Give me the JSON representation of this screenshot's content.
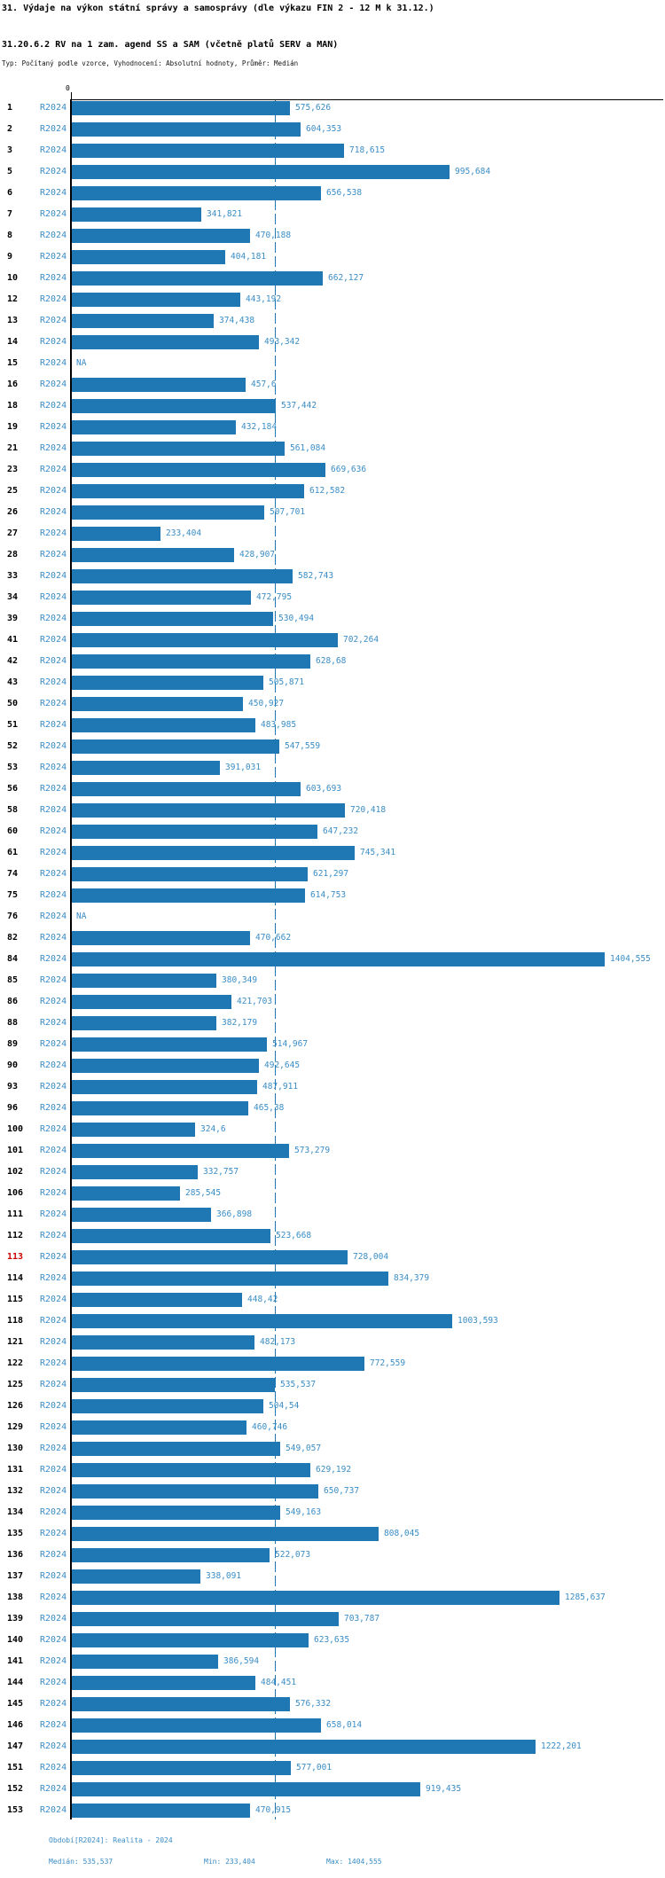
{
  "colors": {
    "bar": "#1f77b4",
    "text_blue": "#3a8dc6",
    "highlight": "#cc0000",
    "axis": "#000000"
  },
  "chart_data": {
    "type": "bar",
    "orientation": "horizontal",
    "title": "31. Výdaje na výkon státní správy a samosprávy (dle výkazu FIN 2 - 12 M k 31.12.)",
    "subtitle": "31.20.6.2 RV na 1 zam. agend SS a SAM (včetně platů SERV a MAN)",
    "meta": "Typ: Počítaný podle vzorce, Vyhodnocení: Absolutní hodnoty, Průměr: Medián",
    "series_label": "R2024",
    "axis_zero_label": "0",
    "na_label": "NA",
    "median_value": 535.537,
    "median_line": true,
    "highlighted_category": "113",
    "xlim_approx": [
      0,
      1560
    ],
    "grid": false,
    "footer": {
      "period": "Období[R2024]: Realita - 2024",
      "median": "Medián: 535,537",
      "min": "Min: 233,404",
      "max": "Max: 1404,555"
    },
    "stats": {
      "median": 535.537,
      "min": 233.404,
      "max": 1404.555
    },
    "rows": [
      {
        "label": "1",
        "value": 575.626,
        "value_label": "575,626"
      },
      {
        "label": "2",
        "value": 604.353,
        "value_label": "604,353"
      },
      {
        "label": "3",
        "value": 718.615,
        "value_label": "718,615"
      },
      {
        "label": "5",
        "value": 995.684,
        "value_label": "995,684"
      },
      {
        "label": "6",
        "value": 656.538,
        "value_label": "656,538"
      },
      {
        "label": "7",
        "value": 341.821,
        "value_label": "341,821"
      },
      {
        "label": "8",
        "value": 470.188,
        "value_label": "470,188"
      },
      {
        "label": "9",
        "value": 404.181,
        "value_label": "404,181"
      },
      {
        "label": "10",
        "value": 662.127,
        "value_label": "662,127"
      },
      {
        "label": "12",
        "value": 443.192,
        "value_label": "443,192"
      },
      {
        "label": "13",
        "value": 374.438,
        "value_label": "374,438"
      },
      {
        "label": "14",
        "value": 493.342,
        "value_label": "493,342"
      },
      {
        "label": "15",
        "value": null,
        "value_label": "NA"
      },
      {
        "label": "16",
        "value": 457.6,
        "value_label": "457,6"
      },
      {
        "label": "18",
        "value": 537.442,
        "value_label": "537,442"
      },
      {
        "label": "19",
        "value": 432.184,
        "value_label": "432,184"
      },
      {
        "label": "21",
        "value": 561.084,
        "value_label": "561,084"
      },
      {
        "label": "23",
        "value": 669.636,
        "value_label": "669,636"
      },
      {
        "label": "25",
        "value": 612.582,
        "value_label": "612,582"
      },
      {
        "label": "26",
        "value": 507.701,
        "value_label": "507,701"
      },
      {
        "label": "27",
        "value": 233.404,
        "value_label": "233,404"
      },
      {
        "label": "28",
        "value": 428.907,
        "value_label": "428,907"
      },
      {
        "label": "33",
        "value": 582.743,
        "value_label": "582,743"
      },
      {
        "label": "34",
        "value": 472.795,
        "value_label": "472,795"
      },
      {
        "label": "39",
        "value": 530.494,
        "value_label": "530,494"
      },
      {
        "label": "41",
        "value": 702.264,
        "value_label": "702,264"
      },
      {
        "label": "42",
        "value": 628.68,
        "value_label": "628,68"
      },
      {
        "label": "43",
        "value": 505.871,
        "value_label": "505,871"
      },
      {
        "label": "50",
        "value": 450.927,
        "value_label": "450,927"
      },
      {
        "label": "51",
        "value": 483.985,
        "value_label": "483,985"
      },
      {
        "label": "52",
        "value": 547.559,
        "value_label": "547,559"
      },
      {
        "label": "53",
        "value": 391.031,
        "value_label": "391,031"
      },
      {
        "label": "56",
        "value": 603.693,
        "value_label": "603,693"
      },
      {
        "label": "58",
        "value": 720.418,
        "value_label": "720,418"
      },
      {
        "label": "60",
        "value": 647.232,
        "value_label": "647,232"
      },
      {
        "label": "61",
        "value": 745.341,
        "value_label": "745,341"
      },
      {
        "label": "74",
        "value": 621.297,
        "value_label": "621,297"
      },
      {
        "label": "75",
        "value": 614.753,
        "value_label": "614,753"
      },
      {
        "label": "76",
        "value": null,
        "value_label": "NA"
      },
      {
        "label": "82",
        "value": 470.662,
        "value_label": "470,662"
      },
      {
        "label": "84",
        "value": 1404.555,
        "value_label": "1404,555"
      },
      {
        "label": "85",
        "value": 380.349,
        "value_label": "380,349"
      },
      {
        "label": "86",
        "value": 421.703,
        "value_label": "421,703"
      },
      {
        "label": "88",
        "value": 382.179,
        "value_label": "382,179"
      },
      {
        "label": "89",
        "value": 514.967,
        "value_label": "514,967"
      },
      {
        "label": "90",
        "value": 492.645,
        "value_label": "492,645"
      },
      {
        "label": "93",
        "value": 487.911,
        "value_label": "487,911"
      },
      {
        "label": "96",
        "value": 465.38,
        "value_label": "465,38"
      },
      {
        "label": "100",
        "value": 324.6,
        "value_label": "324,6"
      },
      {
        "label": "101",
        "value": 573.279,
        "value_label": "573,279"
      },
      {
        "label": "102",
        "value": 332.757,
        "value_label": "332,757"
      },
      {
        "label": "106",
        "value": 285.545,
        "value_label": "285,545"
      },
      {
        "label": "111",
        "value": 366.898,
        "value_label": "366,898"
      },
      {
        "label": "112",
        "value": 523.668,
        "value_label": "523,668"
      },
      {
        "label": "113",
        "value": 728.004,
        "value_label": "728,004"
      },
      {
        "label": "114",
        "value": 834.379,
        "value_label": "834,379"
      },
      {
        "label": "115",
        "value": 448.42,
        "value_label": "448,42"
      },
      {
        "label": "118",
        "value": 1003.593,
        "value_label": "1003,593"
      },
      {
        "label": "121",
        "value": 482.173,
        "value_label": "482,173"
      },
      {
        "label": "122",
        "value": 772.559,
        "value_label": "772,559"
      },
      {
        "label": "125",
        "value": 535.537,
        "value_label": "535,537"
      },
      {
        "label": "126",
        "value": 504.54,
        "value_label": "504,54"
      },
      {
        "label": "129",
        "value": 460.746,
        "value_label": "460,746"
      },
      {
        "label": "130",
        "value": 549.057,
        "value_label": "549,057"
      },
      {
        "label": "131",
        "value": 629.192,
        "value_label": "629,192"
      },
      {
        "label": "132",
        "value": 650.737,
        "value_label": "650,737"
      },
      {
        "label": "134",
        "value": 549.163,
        "value_label": "549,163"
      },
      {
        "label": "135",
        "value": 808.045,
        "value_label": "808,045"
      },
      {
        "label": "136",
        "value": 522.073,
        "value_label": "522,073"
      },
      {
        "label": "137",
        "value": 338.091,
        "value_label": "338,091"
      },
      {
        "label": "138",
        "value": 1285.637,
        "value_label": "1285,637"
      },
      {
        "label": "139",
        "value": 703.787,
        "value_label": "703,787"
      },
      {
        "label": "140",
        "value": 623.635,
        "value_label": "623,635"
      },
      {
        "label": "141",
        "value": 386.594,
        "value_label": "386,594"
      },
      {
        "label": "144",
        "value": 484.451,
        "value_label": "484,451"
      },
      {
        "label": "145",
        "value": 576.332,
        "value_label": "576,332"
      },
      {
        "label": "146",
        "value": 658.014,
        "value_label": "658,014"
      },
      {
        "label": "147",
        "value": 1222.201,
        "value_label": "1222,201"
      },
      {
        "label": "151",
        "value": 577.001,
        "value_label": "577,001"
      },
      {
        "label": "152",
        "value": 919.435,
        "value_label": "919,435"
      },
      {
        "label": "153",
        "value": 470.915,
        "value_label": "470,915"
      }
    ]
  }
}
